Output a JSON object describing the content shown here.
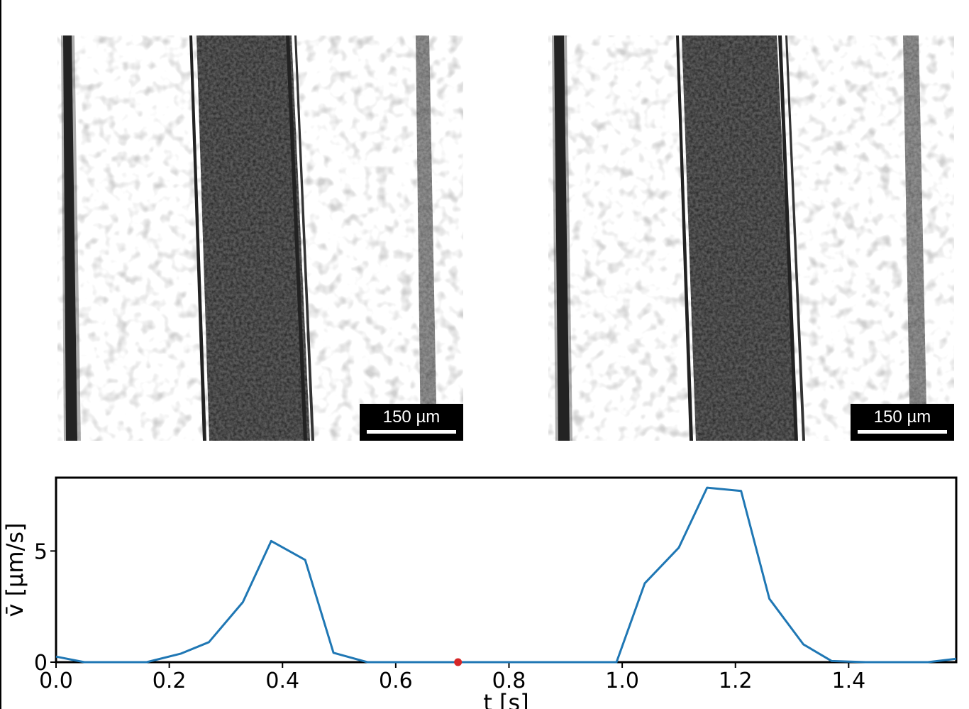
{
  "panels": [
    {
      "scalebar_label": "150 µm"
    },
    {
      "scalebar_label": "150 µm"
    }
  ],
  "chart_data": {
    "type": "line",
    "title": "",
    "xlabel": "t [s]",
    "ylabel": "v̄ [µm/s]",
    "xlim": [
      0.0,
      1.59
    ],
    "ylim": [
      0,
      8.3
    ],
    "xticks": [
      0.0,
      0.2,
      0.4,
      0.6,
      0.8,
      1.0,
      1.2,
      1.4
    ],
    "yticks": [
      0,
      5
    ],
    "grid": false,
    "series": [
      {
        "color": "#1f77b4",
        "x": [
          0.0,
          0.05,
          0.11,
          0.16,
          0.22,
          0.27,
          0.33,
          0.38,
          0.44,
          0.49,
          0.55,
          0.6,
          0.66,
          0.71,
          0.77,
          0.82,
          0.88,
          0.93,
          0.99,
          1.04,
          1.1,
          1.15,
          1.21,
          1.26,
          1.32,
          1.37,
          1.43,
          1.48,
          1.54,
          1.59
        ],
        "y": [
          0.25,
          0.0,
          0.0,
          0.0,
          0.38,
          0.9,
          2.7,
          5.45,
          4.6,
          0.42,
          0.0,
          0.0,
          0.0,
          0.0,
          0.0,
          0.0,
          0.0,
          0.0,
          0.0,
          3.55,
          5.15,
          7.85,
          7.7,
          2.85,
          0.8,
          0.05,
          0.0,
          0.0,
          0.0,
          0.15
        ]
      }
    ],
    "marker": {
      "x": 0.71,
      "y": 0.0,
      "color": "#d62728"
    }
  }
}
